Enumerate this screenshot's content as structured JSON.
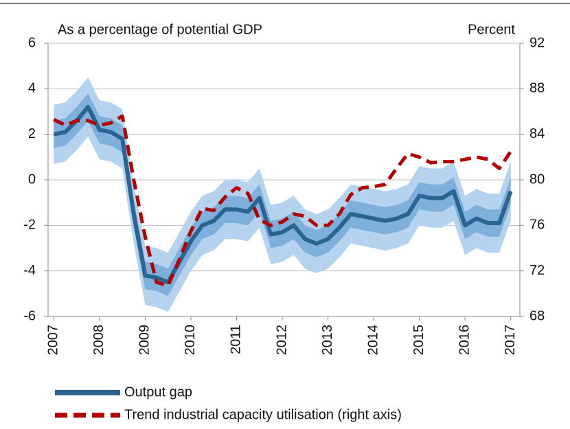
{
  "chart_data": {
    "type": "line",
    "subtitle_left": "As a percentage of potential GDP",
    "subtitle_right": "Percent",
    "x": [
      2007,
      2007.25,
      2007.5,
      2007.75,
      2008,
      2008.25,
      2008.5,
      2008.75,
      2009,
      2009.25,
      2009.5,
      2009.75,
      2010,
      2010.25,
      2010.5,
      2010.75,
      2011,
      2011.25,
      2011.5,
      2011.75,
      2012,
      2012.25,
      2012.5,
      2012.75,
      2013,
      2013.25,
      2013.5,
      2013.75,
      2014,
      2014.25,
      2014.5,
      2014.75,
      2015,
      2015.25,
      2015.5,
      2015.75,
      2016,
      2016.25,
      2016.5,
      2016.75,
      2017
    ],
    "series": [
      {
        "name": "Output gap",
        "color": "#2a6591",
        "axis": "y",
        "values": [
          2.0,
          2.1,
          2.6,
          3.2,
          2.2,
          2.1,
          1.8,
          -1.5,
          -4.2,
          -4.3,
          -4.5,
          -3.6,
          -2.7,
          -2.0,
          -1.8,
          -1.3,
          -1.3,
          -1.4,
          -0.8,
          -2.4,
          -2.3,
          -2.0,
          -2.6,
          -2.8,
          -2.6,
          -2.1,
          -1.5,
          -1.6,
          -1.7,
          -1.8,
          -1.7,
          -1.5,
          -0.7,
          -0.8,
          -0.8,
          -0.5,
          -2.0,
          -1.7,
          -1.9,
          -1.9,
          -0.5
        ],
        "bands": [
          {
            "color": "#b5d3ee",
            "error": 1.3
          },
          {
            "color": "#7fb0dc",
            "error": 0.6
          }
        ]
      },
      {
        "name": "Trend industrial capacity utilisation (right axis)",
        "color": "#b30000",
        "axis": "y2",
        "dashed": true,
        "values": [
          85.3,
          84.8,
          85.2,
          85.2,
          84.8,
          85.0,
          85.6,
          80,
          75,
          71,
          70.7,
          73,
          75.5,
          77.5,
          77.3,
          78.5,
          79.3,
          78.8,
          76.5,
          76.0,
          76.3,
          77.0,
          76.8,
          76.0,
          76.0,
          77.0,
          78.7,
          79.3,
          79.4,
          79.6,
          81.0,
          82.3,
          82.0,
          81.5,
          81.6,
          81.6,
          81.8,
          82.0,
          81.8,
          81.0,
          82.5
        ]
      }
    ],
    "xlim": [
      2006.875,
      2017.2
    ],
    "xticks": [
      2007,
      2008,
      2009,
      2010,
      2011,
      2012,
      2013,
      2014,
      2015,
      2016,
      2017
    ],
    "ylim": [
      -6,
      6
    ],
    "yticks": [
      -6,
      -4,
      -2,
      0,
      2,
      4,
      6
    ],
    "y2lim": [
      68,
      92
    ],
    "y2ticks": [
      68,
      72,
      76,
      80,
      84,
      88,
      92
    ],
    "grid": true,
    "legend": "bottom-left"
  }
}
